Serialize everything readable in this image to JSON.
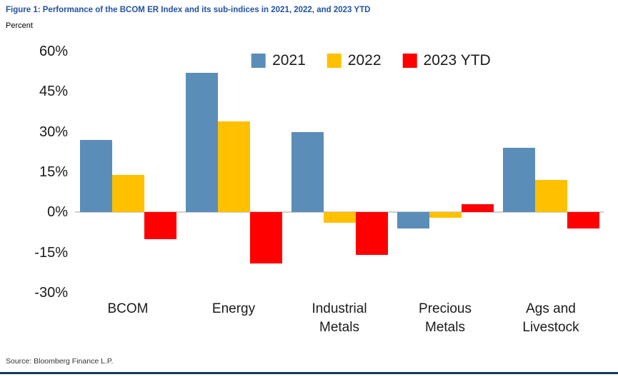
{
  "title": "Figure 1: Performance of the BCOM ER Index and its sub-indices in 2021, 2022, and 2023 YTD",
  "axis_unit_label": "Percent",
  "source": "Source: Bloomberg Finance L.P.",
  "colors": {
    "series_2021": "#5b8db9",
    "series_2022": "#ffc000",
    "series_2023_ytd": "#ff0000",
    "zero_line": "#cfcfcf",
    "title_blue": "#2152a3",
    "bottom_rule": "#17365d"
  },
  "chart_data": {
    "type": "bar",
    "title": "Figure 1: Performance of the BCOM ER Index and its sub-indices in 2021, 2022, and 2023 YTD",
    "ylabel": "Percent",
    "categories": [
      "BCOM",
      "Energy",
      "Industrial\nMetals",
      "Precious\nMetals",
      "Ags and\nLivestock"
    ],
    "series": [
      {
        "name": "2021",
        "color": "#5b8db9",
        "values": [
          27,
          52,
          30,
          -6,
          24
        ]
      },
      {
        "name": "2022",
        "color": "#ffc000",
        "values": [
          14,
          34,
          -4,
          -2,
          12
        ]
      },
      {
        "name": "2023 YTD",
        "color": "#ff0000",
        "values": [
          -10,
          -19,
          -16,
          3,
          -6
        ]
      }
    ],
    "ylim": [
      -30,
      60
    ],
    "yticks": [
      60,
      45,
      30,
      15,
      0,
      -15,
      -30
    ],
    "ytick_suffix": "%",
    "grid": false,
    "legend_position": "top-center"
  }
}
